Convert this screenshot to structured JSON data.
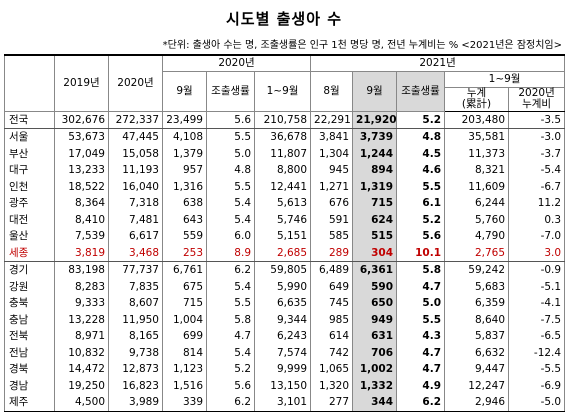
{
  "title": "시도별 출생아 수",
  "note": "*단위: 출생아 수는 명, 조출생률은 인구 1천 명당 명, 전년 누계비는 % <2021년은 잠정치임>",
  "header": {
    "y2019": "2019년",
    "y2020": "2020년",
    "group2020": "2020년",
    "group2021": "2021년",
    "m9_2020": "9월",
    "cbr_2020": "조출생률",
    "cum_2020": "1~9월",
    "m8_2021": "8월",
    "m9_2021": "9월",
    "cbr_2021": "조출생률",
    "cum_group_2021": "1~9월",
    "cum_2021": [
      "누계",
      "(累計)"
    ],
    "ratio": [
      "2020년",
      "누계비"
    ]
  },
  "table": {
    "rows": [
      [
        "전국",
        "302,676",
        "272,337",
        "23,499",
        "5.6",
        "210,758",
        "22,291",
        "21,920",
        "5.2",
        "203,480",
        "-3.5"
      ],
      [
        "서울",
        "53,673",
        "47,445",
        "4,108",
        "5.5",
        "36,678",
        "3,841",
        "3,739",
        "4.8",
        "35,581",
        "-3.0"
      ],
      [
        "부산",
        "17,049",
        "15,058",
        "1,379",
        "5.0",
        "11,807",
        "1,304",
        "1,244",
        "4.5",
        "11,373",
        "-3.7"
      ],
      [
        "대구",
        "13,233",
        "11,193",
        "957",
        "4.8",
        "8,800",
        "945",
        "894",
        "4.6",
        "8,321",
        "-5.4"
      ],
      [
        "인천",
        "18,522",
        "16,040",
        "1,316",
        "5.5",
        "12,441",
        "1,271",
        "1,319",
        "5.5",
        "11,609",
        "-6.7"
      ],
      [
        "광주",
        "8,364",
        "7,318",
        "638",
        "5.4",
        "5,613",
        "676",
        "715",
        "6.1",
        "6,244",
        "11.2"
      ],
      [
        "대전",
        "8,410",
        "7,481",
        "643",
        "5.4",
        "5,746",
        "591",
        "624",
        "5.2",
        "5,760",
        "0.3"
      ],
      [
        "울산",
        "7,539",
        "6,617",
        "559",
        "6.0",
        "5,151",
        "585",
        "515",
        "5.6",
        "4,790",
        "-7.0"
      ],
      [
        "세종",
        "3,819",
        "3,468",
        "253",
        "8.9",
        "2,685",
        "289",
        "304",
        "10.1",
        "2,765",
        "3.0"
      ],
      [
        "경기",
        "83,198",
        "77,737",
        "6,761",
        "6.2",
        "59,805",
        "6,489",
        "6,361",
        "5.8",
        "59,242",
        "-0.9"
      ],
      [
        "강원",
        "8,283",
        "7,835",
        "675",
        "5.4",
        "5,990",
        "649",
        "590",
        "4.7",
        "5,683",
        "-5.1"
      ],
      [
        "충북",
        "9,333",
        "8,607",
        "715",
        "5.5",
        "6,635",
        "745",
        "650",
        "5.0",
        "6,359",
        "-4.1"
      ],
      [
        "충남",
        "13,228",
        "11,950",
        "1,004",
        "5.8",
        "9,344",
        "985",
        "949",
        "5.5",
        "8,640",
        "-7.5"
      ],
      [
        "전북",
        "8,971",
        "8,165",
        "699",
        "4.7",
        "6,243",
        "614",
        "631",
        "4.3",
        "5,837",
        "-6.5"
      ],
      [
        "전남",
        "10,832",
        "9,738",
        "814",
        "5.4",
        "7,574",
        "742",
        "706",
        "4.7",
        "6,632",
        "-12.4"
      ],
      [
        "경북",
        "14,472",
        "12,873",
        "1,123",
        "5.2",
        "9,999",
        "1,065",
        "1,002",
        "4.7",
        "9,447",
        "-5.5"
      ],
      [
        "경남",
        "19,250",
        "16,823",
        "1,516",
        "5.6",
        "13,150",
        "1,320",
        "1,332",
        "4.9",
        "12,247",
        "-6.9"
      ],
      [
        "제주",
        "4,500",
        "3,989",
        "339",
        "6.2",
        "3,101",
        "277",
        "344",
        "6.2",
        "2,946",
        "-5.0"
      ]
    ]
  }
}
